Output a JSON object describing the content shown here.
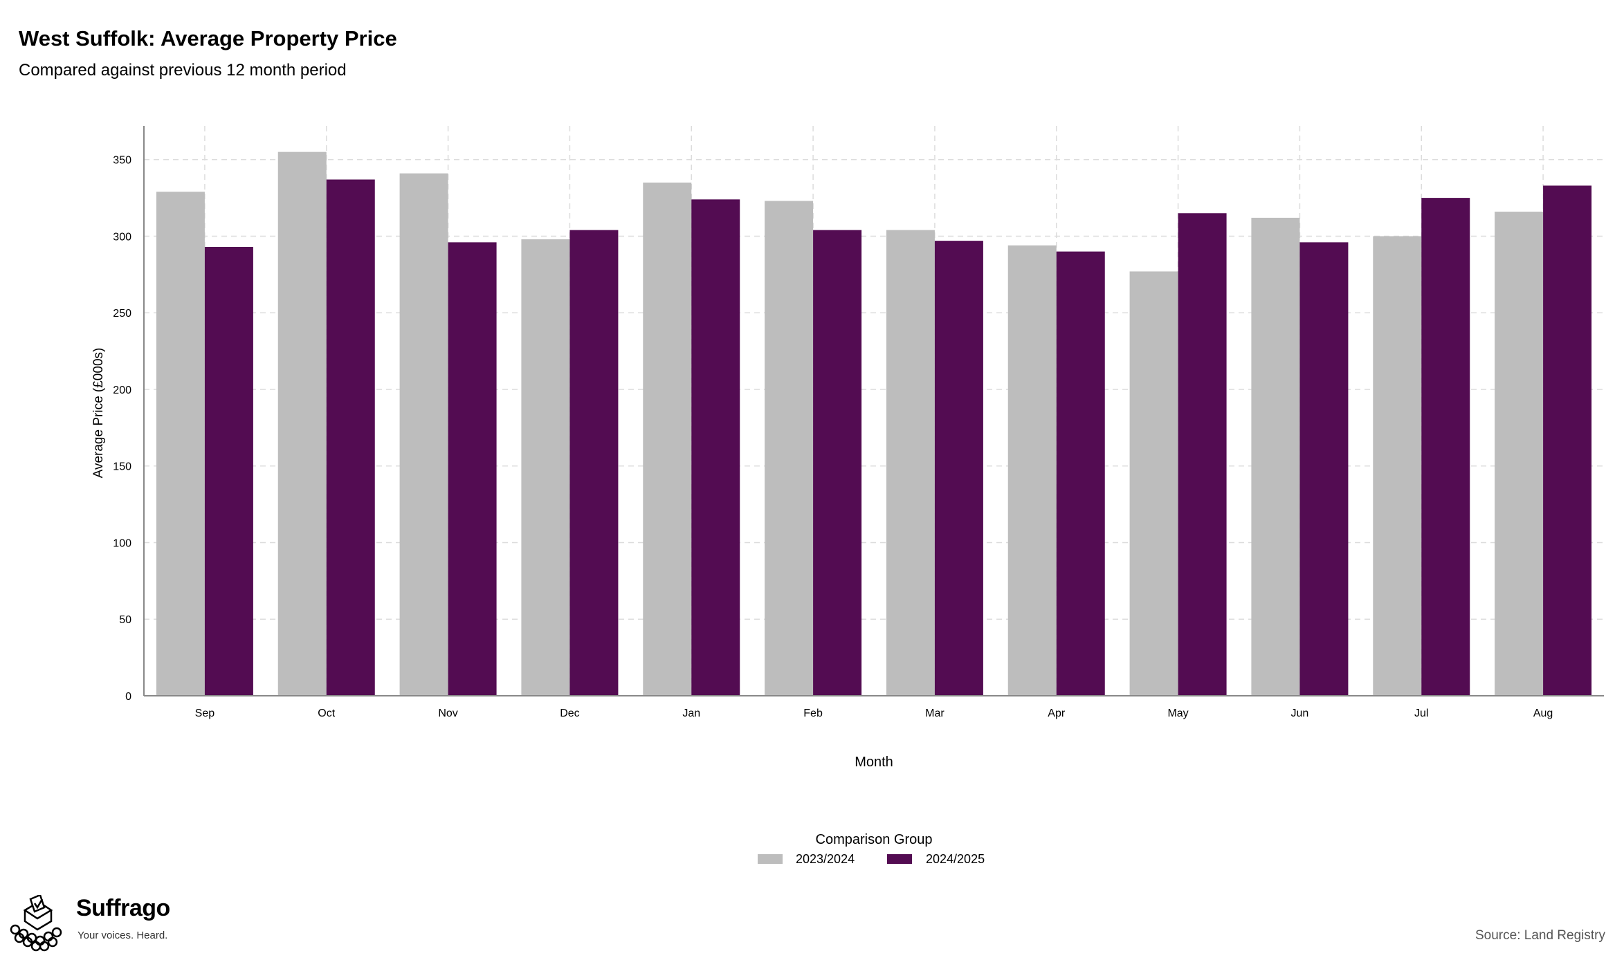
{
  "title": "West Suffolk: Average Property Price",
  "subtitle": "Compared against previous 12 month period",
  "source": "Source: Land Registry",
  "brand": {
    "name": "Suffrago",
    "tagline": "Your voices. Heard."
  },
  "chart_data": {
    "type": "bar",
    "xlabel": "Month",
    "ylabel": "Average Price (£000s)",
    "ylim": [
      0,
      372
    ],
    "yticks": [
      0,
      50,
      100,
      150,
      200,
      250,
      300,
      350
    ],
    "grid": true,
    "legend": {
      "title": "Comparison Group",
      "placement": "bottom-center"
    },
    "categories": [
      "Sep",
      "Oct",
      "Nov",
      "Dec",
      "Jan",
      "Feb",
      "Mar",
      "Apr",
      "May",
      "Jun",
      "Jul",
      "Aug"
    ],
    "series": [
      {
        "name": "2023/2024",
        "color": "#bdbdbd",
        "values": [
          329,
          355,
          341,
          298,
          335,
          323,
          304,
          294,
          277,
          312,
          300,
          316
        ]
      },
      {
        "name": "2024/2025",
        "color": "#530c52",
        "values": [
          293,
          337,
          296,
          304,
          324,
          304,
          297,
          290,
          315,
          296,
          325,
          333
        ]
      }
    ]
  }
}
